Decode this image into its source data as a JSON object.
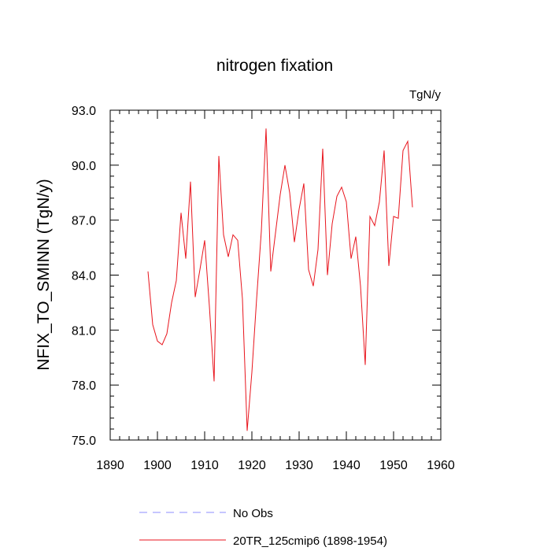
{
  "chart_data": {
    "type": "line",
    "title": "nitrogen fixation",
    "units_label": "TgN/y",
    "ylabel": "NFIX_TO_SMINN  (TgN/y)",
    "xlabel": "",
    "xlim": [
      1890,
      1960
    ],
    "ylim": [
      75.0,
      93.0
    ],
    "x_ticks": [
      1890,
      1900,
      1910,
      1920,
      1930,
      1940,
      1950,
      1960
    ],
    "x_tick_labels": [
      "1890",
      "1900",
      "1910",
      "1920",
      "1930",
      "1940",
      "1950",
      "1960"
    ],
    "y_ticks": [
      75.0,
      78.0,
      81.0,
      84.0,
      87.0,
      90.0,
      93.0
    ],
    "y_tick_labels": [
      "75.0",
      "78.0",
      "81.0",
      "84.0",
      "87.0",
      "90.0",
      "93.0"
    ],
    "x_minor_step": 2,
    "y_minor_step": 0.6,
    "series": [
      {
        "name": "20TR_125cmip6 (1898-1954)",
        "color": "#e8141c",
        "style": "solid",
        "x": [
          1898,
          1899,
          1900,
          1901,
          1902,
          1903,
          1904,
          1905,
          1906,
          1907,
          1908,
          1909,
          1910,
          1911,
          1912,
          1913,
          1914,
          1915,
          1916,
          1917,
          1918,
          1919,
          1920,
          1921,
          1922,
          1923,
          1924,
          1925,
          1926,
          1927,
          1928,
          1929,
          1930,
          1931,
          1932,
          1933,
          1934,
          1935,
          1936,
          1937,
          1938,
          1939,
          1940,
          1941,
          1942,
          1943,
          1944,
          1945,
          1946,
          1947,
          1948,
          1949,
          1950,
          1951,
          1952,
          1953,
          1954
        ],
        "values": [
          84.2,
          81.3,
          80.4,
          80.2,
          80.8,
          82.5,
          83.7,
          87.4,
          84.9,
          89.1,
          82.8,
          84.3,
          85.9,
          82.3,
          78.2,
          90.5,
          86.2,
          85.0,
          86.2,
          85.9,
          82.7,
          75.5,
          78.7,
          82.7,
          86.4,
          92.0,
          84.2,
          86.3,
          88.4,
          90.0,
          88.5,
          85.8,
          87.6,
          89.0,
          84.3,
          83.4,
          85.4,
          90.9,
          84.0,
          86.8,
          88.3,
          88.8,
          88.0,
          84.9,
          86.1,
          83.4,
          79.1,
          87.2,
          86.7,
          88.0,
          90.8,
          84.5,
          87.2,
          87.1,
          90.8,
          91.3,
          87.7
        ]
      },
      {
        "name": "No Obs",
        "color": "#8c8cff",
        "style": "dashed",
        "x": [],
        "values": []
      }
    ],
    "legend_position": "bottom-left"
  }
}
